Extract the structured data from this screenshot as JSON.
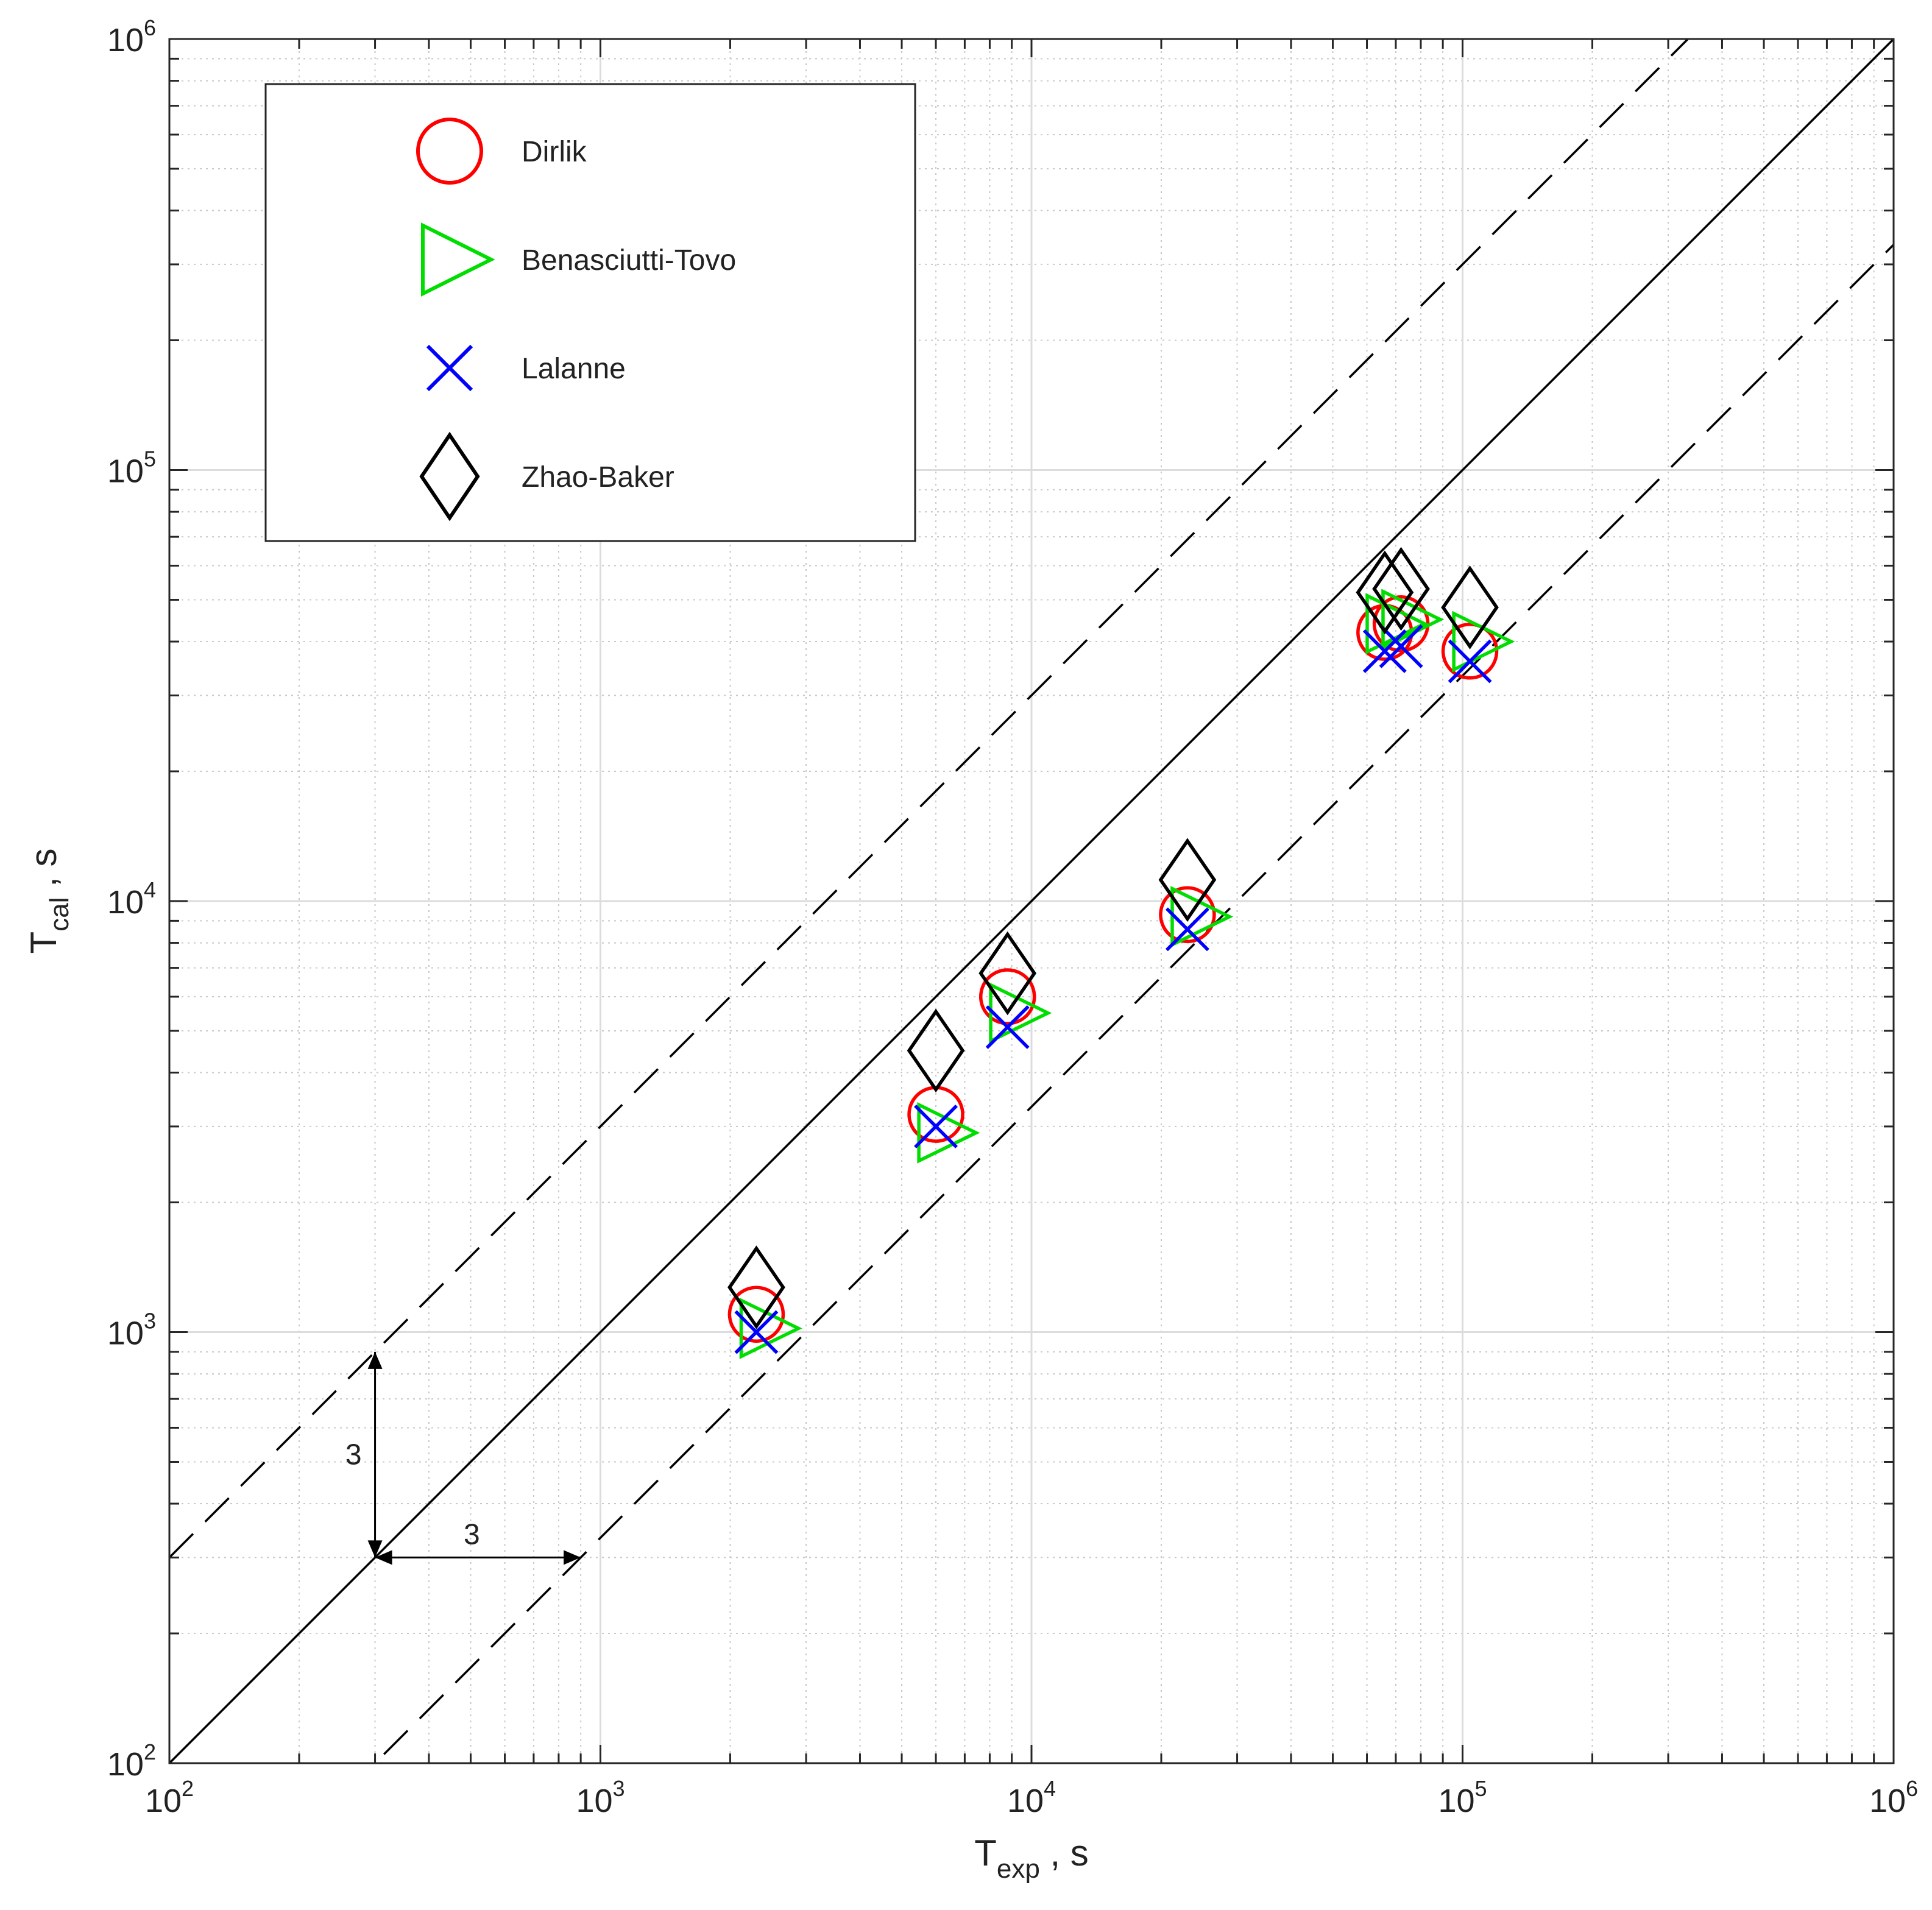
{
  "chart_data": {
    "type": "scatter",
    "title": "",
    "xlabel": "T",
    "xlabel_sub": "exp",
    "xlabel_unit": ", s",
    "ylabel": "T",
    "ylabel_sub": "cal",
    "ylabel_unit": ", s",
    "xscale": "log",
    "yscale": "log",
    "xlim": [
      100,
      1000000
    ],
    "ylim": [
      100,
      1000000
    ],
    "grid": true,
    "x_ticks": [
      {
        "base": "10",
        "exp": "2"
      },
      {
        "base": "10",
        "exp": "3"
      },
      {
        "base": "10",
        "exp": "4"
      },
      {
        "base": "10",
        "exp": "5"
      },
      {
        "base": "10",
        "exp": "6"
      }
    ],
    "y_ticks": [
      {
        "base": "10",
        "exp": "2"
      },
      {
        "base": "10",
        "exp": "3"
      },
      {
        "base": "10",
        "exp": "4"
      },
      {
        "base": "10",
        "exp": "5"
      },
      {
        "base": "10",
        "exp": "6"
      }
    ],
    "reference_lines": [
      {
        "name": "perfect-agreement",
        "factor": 1,
        "style": "solid"
      },
      {
        "name": "upper-factor-3-band",
        "factor": 3,
        "style": "dashed"
      },
      {
        "name": "lower-factor-3-band",
        "factor": 0.333333,
        "style": "dashed"
      }
    ],
    "annotations": [
      {
        "text": "3",
        "arrow": "vertical",
        "from": [
          300,
          300
        ],
        "to": [
          300,
          900
        ]
      },
      {
        "text": "3",
        "arrow": "horizontal",
        "from": [
          300,
          300
        ],
        "to": [
          900,
          300
        ]
      }
    ],
    "legend_position": "top-left",
    "series": [
      {
        "name": "Dirlik",
        "marker": "circle",
        "color": "#ff0000",
        "points": [
          {
            "x": 2300,
            "y": 1100
          },
          {
            "x": 6000,
            "y": 3200
          },
          {
            "x": 8800,
            "y": 6000
          },
          {
            "x": 23000,
            "y": 9300
          },
          {
            "x": 66000,
            "y": 42000
          },
          {
            "x": 72000,
            "y": 44000
          },
          {
            "x": 104000,
            "y": 38000
          }
        ]
      },
      {
        "name": "Benasciutti-Tovo",
        "marker": "triangle-right",
        "color": "#00dd00",
        "points": [
          {
            "x": 2400,
            "y": 1020
          },
          {
            "x": 6200,
            "y": 2900
          },
          {
            "x": 9100,
            "y": 5500
          },
          {
            "x": 24000,
            "y": 9200
          },
          {
            "x": 68000,
            "y": 44000
          },
          {
            "x": 74000,
            "y": 45000
          },
          {
            "x": 108000,
            "y": 40000
          }
        ]
      },
      {
        "name": "Lalanne",
        "marker": "x",
        "color": "#0000ff",
        "points": [
          {
            "x": 2300,
            "y": 1000
          },
          {
            "x": 6000,
            "y": 3000
          },
          {
            "x": 8800,
            "y": 5100
          },
          {
            "x": 23000,
            "y": 8600
          },
          {
            "x": 66000,
            "y": 38000
          },
          {
            "x": 72000,
            "y": 39000
          },
          {
            "x": 104000,
            "y": 36000
          }
        ]
      },
      {
        "name": "Zhao-Baker",
        "marker": "diamond",
        "color": "#000000",
        "points": [
          {
            "x": 2300,
            "y": 1270
          },
          {
            "x": 6000,
            "y": 4500
          },
          {
            "x": 8800,
            "y": 6800
          },
          {
            "x": 23000,
            "y": 11200
          },
          {
            "x": 66000,
            "y": 52000
          },
          {
            "x": 72000,
            "y": 53000
          },
          {
            "x": 104000,
            "y": 48000
          }
        ]
      }
    ]
  }
}
